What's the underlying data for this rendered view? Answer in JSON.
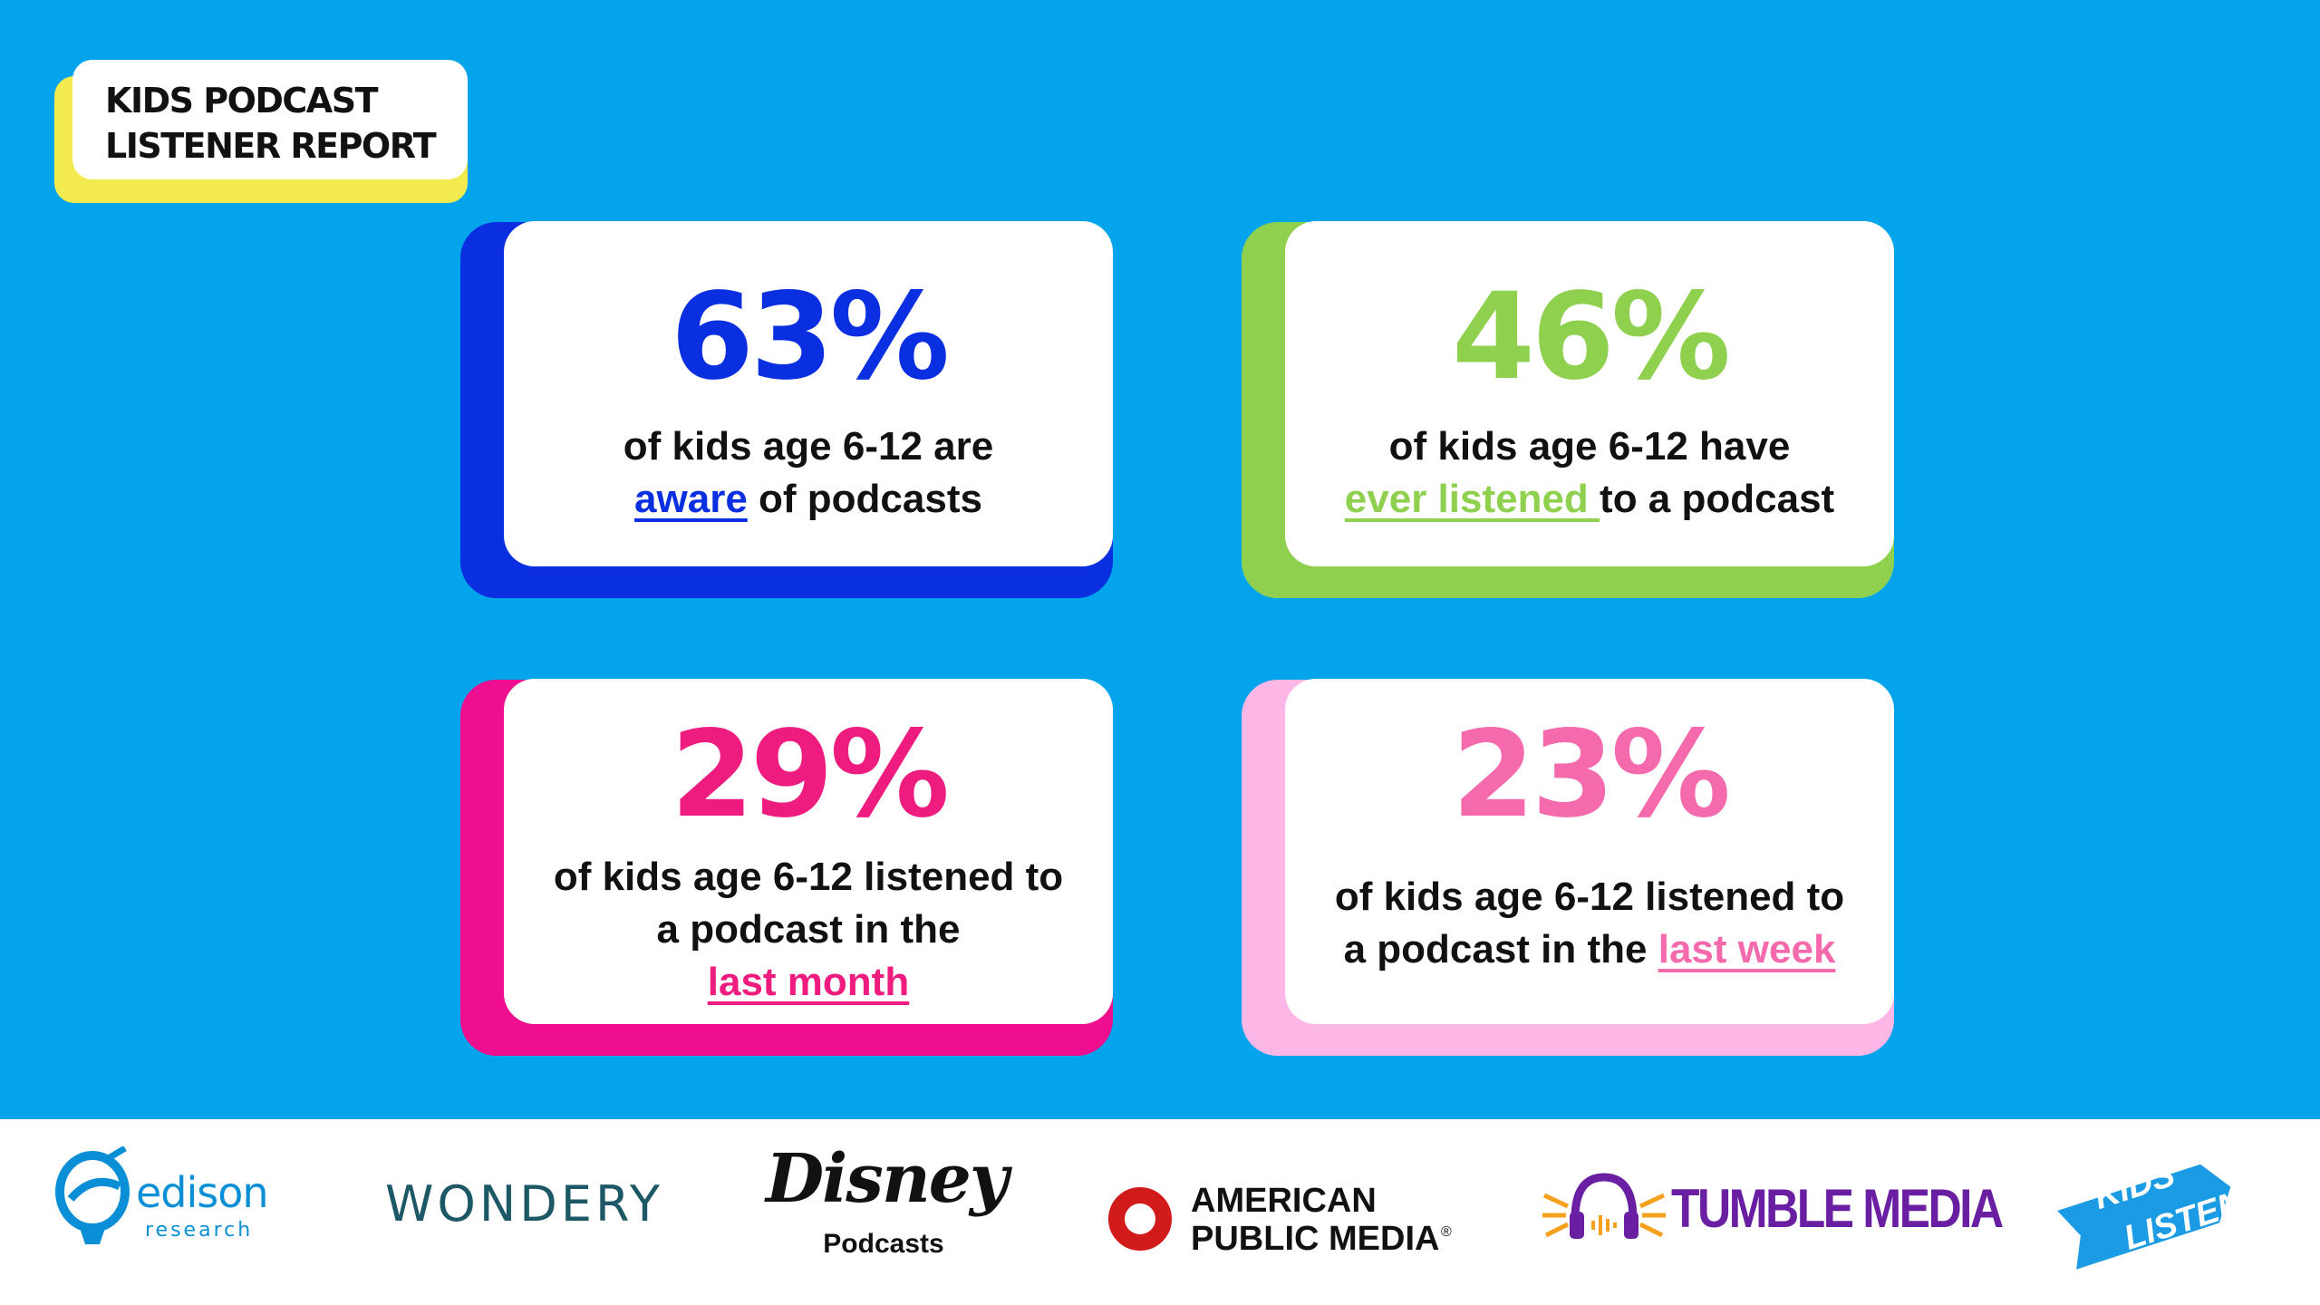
{
  "report_tag": {
    "line1": "KIDS PODCAST",
    "line2": "LISTENER REPORT"
  },
  "stats": [
    {
      "percent": "63%",
      "line1": "of kids age 6-12 are",
      "highlight": "aware",
      "after": " of podcasts",
      "color": "#0a2fe0",
      "shadow": "#0a2fe0"
    },
    {
      "percent": "46%",
      "line1": "of kids age 6-12 have",
      "highlight": "ever listened ",
      "after": "to a podcast",
      "color": "#8fd14f",
      "shadow": "#8fd14f"
    },
    {
      "percent": "29%",
      "line1": "of kids age 6-12 listened to",
      "line2": "a podcast in the",
      "highlight": "last month",
      "color": "#ee1c7f",
      "shadow": "#ee0e8f"
    },
    {
      "percent": "23%",
      "line1": "of kids age 6-12 listened to",
      "before": "a podcast in the ",
      "highlight": "last week",
      "color": "#f569ad",
      "shadow": "#fcb7e6"
    }
  ],
  "logos": {
    "edison": {
      "name": "edison",
      "sub": "research"
    },
    "wondery": {
      "name": "WONDERY"
    },
    "disney": {
      "name": "Disney",
      "sub": "Podcasts"
    },
    "apm": {
      "line1": "AMERICAN",
      "line2": "PUBLIC MEDIA",
      "mark": "®"
    },
    "tumble": {
      "name": "TUMBLE MEDIA"
    },
    "kidslisten": {
      "line1": "KIDS",
      "line2": "LISTEN"
    }
  }
}
